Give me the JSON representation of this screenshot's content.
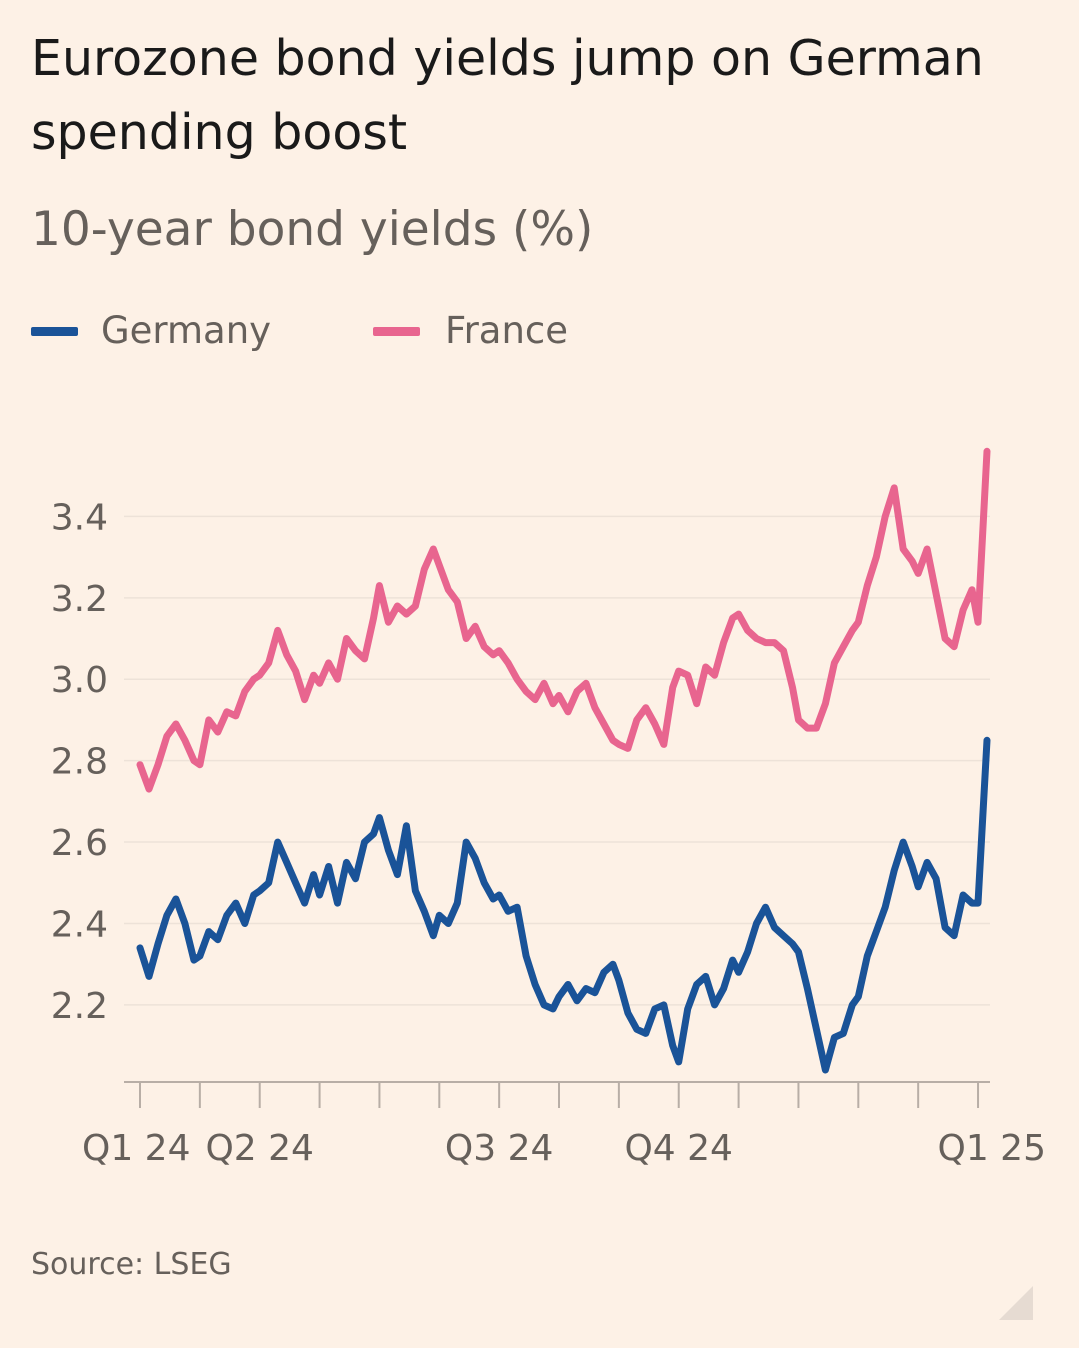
{
  "title": "Eurozone bond yields jump on German spending boost",
  "chart_data": {
    "type": "line",
    "title": "Eurozone bond yields jump on German spending boost",
    "subtitle": "10-year bond yields (%)",
    "xlabel": "",
    "ylabel": "10-year bond yields (%)",
    "ylim": [
      2.04,
      3.6
    ],
    "yticks": [
      2.2,
      2.4,
      2.6,
      2.8,
      3.0,
      3.2,
      3.4
    ],
    "ytick_labels": [
      "2.2",
      "2.4",
      "2.6",
      "2.8",
      "3.0",
      "3.2",
      "3.4"
    ],
    "x_unit": "months since start of Q1 24",
    "xlim": [
      0,
      14.2
    ],
    "xticks": [
      {
        "x": 0,
        "label": "Q1 24"
      },
      {
        "x": 1,
        "label": ""
      },
      {
        "x": 2,
        "label": "Q2 24"
      },
      {
        "x": 3,
        "label": ""
      },
      {
        "x": 4,
        "label": ""
      },
      {
        "x": 5,
        "label": ""
      },
      {
        "x": 6,
        "label": "Q3 24"
      },
      {
        "x": 7,
        "label": ""
      },
      {
        "x": 8,
        "label": ""
      },
      {
        "x": 9,
        "label": "Q4 24"
      },
      {
        "x": 10,
        "label": ""
      },
      {
        "x": 11,
        "label": ""
      },
      {
        "x": 12,
        "label": ""
      },
      {
        "x": 13,
        "label": ""
      },
      {
        "x": 14,
        "label": "Q1 25"
      }
    ],
    "legend_position": "top-left",
    "grid": "horizontal",
    "x": [
      0.0,
      0.15,
      0.3,
      0.45,
      0.6,
      0.75,
      0.9,
      1.0,
      1.15,
      1.3,
      1.45,
      1.6,
      1.75,
      1.9,
      2.0,
      2.15,
      2.3,
      2.45,
      2.6,
      2.75,
      2.9,
      3.0,
      3.15,
      3.3,
      3.45,
      3.6,
      3.75,
      3.9,
      4.0,
      4.15,
      4.3,
      4.45,
      4.6,
      4.75,
      4.9,
      5.0,
      5.15,
      5.3,
      5.45,
      5.6,
      5.75,
      5.9,
      6.0,
      6.15,
      6.3,
      6.45,
      6.6,
      6.75,
      6.9,
      7.0,
      7.15,
      7.3,
      7.45,
      7.6,
      7.75,
      7.9,
      8.0,
      8.15,
      8.3,
      8.45,
      8.6,
      8.75,
      8.9,
      9.0,
      9.15,
      9.3,
      9.45,
      9.6,
      9.75,
      9.9,
      10.0,
      10.15,
      10.3,
      10.45,
      10.6,
      10.75,
      10.9,
      11.0,
      11.15,
      11.3,
      11.45,
      11.6,
      11.75,
      11.9,
      12.0,
      12.15,
      12.3,
      12.45,
      12.6,
      12.75,
      12.9,
      13.0,
      13.15,
      13.3,
      13.45,
      13.6,
      13.75,
      13.9,
      14.0,
      14.15
    ],
    "series": [
      {
        "name": "Germany",
        "color": "#1a5398",
        "values": [
          2.34,
          2.27,
          2.35,
          2.42,
          2.46,
          2.4,
          2.31,
          2.32,
          2.38,
          2.36,
          2.42,
          2.45,
          2.4,
          2.47,
          2.48,
          2.5,
          2.6,
          2.55,
          2.5,
          2.45,
          2.52,
          2.47,
          2.54,
          2.45,
          2.55,
          2.51,
          2.6,
          2.62,
          2.66,
          2.58,
          2.52,
          2.64,
          2.48,
          2.43,
          2.37,
          2.42,
          2.4,
          2.45,
          2.6,
          2.56,
          2.5,
          2.46,
          2.47,
          2.43,
          2.44,
          2.32,
          2.25,
          2.2,
          2.19,
          2.22,
          2.25,
          2.21,
          2.24,
          2.23,
          2.28,
          2.3,
          2.26,
          2.18,
          2.14,
          2.13,
          2.19,
          2.2,
          2.1,
          2.06,
          2.19,
          2.25,
          2.27,
          2.2,
          2.24,
          2.31,
          2.28,
          2.33,
          2.4,
          2.44,
          2.39,
          2.37,
          2.35,
          2.33,
          2.24,
          2.14,
          2.04,
          2.12,
          2.13,
          2.2,
          2.22,
          2.32,
          2.38,
          2.44,
          2.53,
          2.6,
          2.54,
          2.49,
          2.55,
          2.51,
          2.39,
          2.37,
          2.47,
          2.45,
          2.45,
          2.85
        ]
      },
      {
        "name": "France",
        "color": "#e8658f",
        "values": [
          2.79,
          2.73,
          2.79,
          2.86,
          2.89,
          2.85,
          2.8,
          2.79,
          2.9,
          2.87,
          2.92,
          2.91,
          2.97,
          3.0,
          3.01,
          3.04,
          3.12,
          3.06,
          3.02,
          2.95,
          3.01,
          2.99,
          3.04,
          3.0,
          3.1,
          3.07,
          3.05,
          3.15,
          3.23,
          3.14,
          3.18,
          3.16,
          3.18,
          3.27,
          3.32,
          3.28,
          3.22,
          3.19,
          3.1,
          3.13,
          3.08,
          3.06,
          3.07,
          3.04,
          3.0,
          2.97,
          2.95,
          2.99,
          2.94,
          2.96,
          2.92,
          2.97,
          2.99,
          2.93,
          2.89,
          2.85,
          2.84,
          2.83,
          2.9,
          2.93,
          2.89,
          2.84,
          2.98,
          3.02,
          3.01,
          2.94,
          3.03,
          3.01,
          3.09,
          3.15,
          3.16,
          3.12,
          3.1,
          3.09,
          3.09,
          3.07,
          2.98,
          2.9,
          2.88,
          2.88,
          2.94,
          3.04,
          3.08,
          3.12,
          3.14,
          3.23,
          3.3,
          3.4,
          3.47,
          3.32,
          3.29,
          3.26,
          3.32,
          3.21,
          3.1,
          3.08,
          3.17,
          3.22,
          3.14,
          3.56
        ]
      }
    ]
  },
  "source": "Source: LSEG"
}
